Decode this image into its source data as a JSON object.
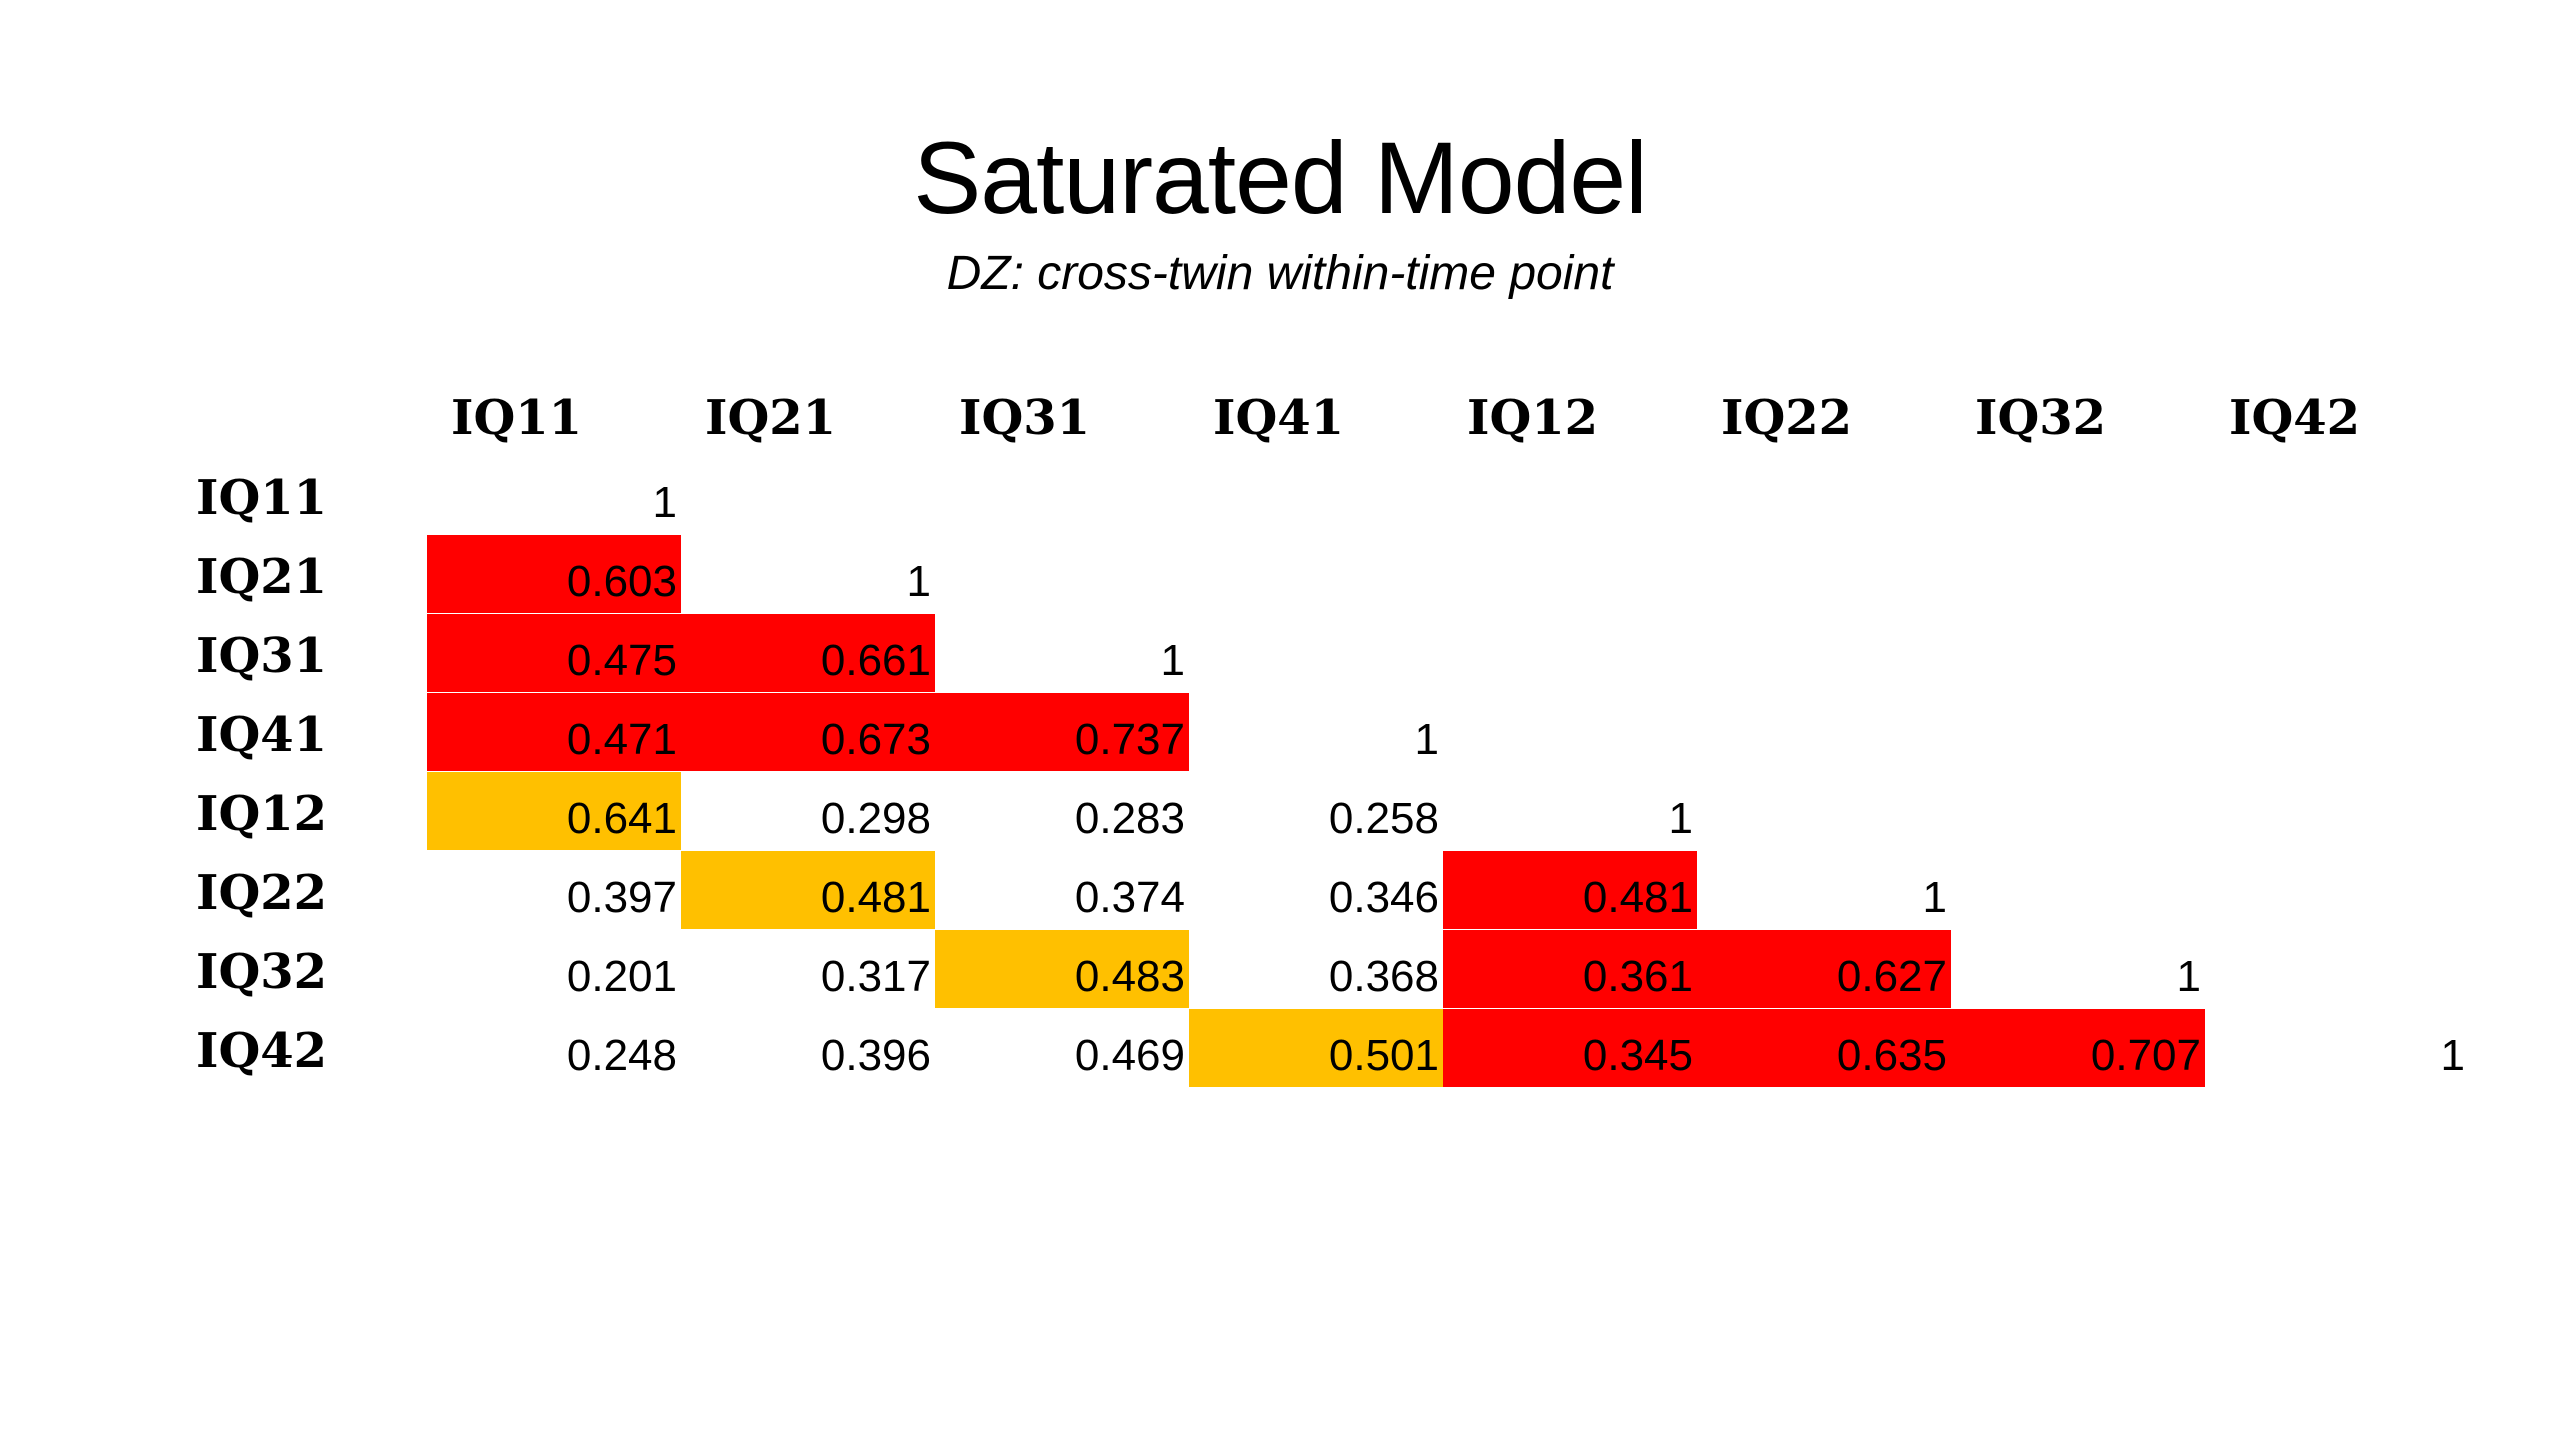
{
  "slide": {
    "title": "Saturated Model",
    "subtitle": "DZ: cross-twin within-time point"
  },
  "colors": {
    "within_twin_highlight": "#ff0000",
    "cross_twin_same_time_highlight": "#ffc000",
    "background": "#ffffff"
  },
  "matrix": {
    "columns": [
      "IQ11",
      "IQ21",
      "IQ31",
      "IQ41",
      "IQ12",
      "IQ22",
      "IQ32",
      "IQ42"
    ],
    "rows": [
      {
        "label": "IQ11",
        "values": [
          "1"
        ]
      },
      {
        "label": "IQ21",
        "values": [
          "0.603",
          "1"
        ]
      },
      {
        "label": "IQ31",
        "values": [
          "0.475",
          "0.661",
          "1"
        ]
      },
      {
        "label": "IQ41",
        "values": [
          "0.471",
          "0.673",
          "0.737",
          "1"
        ]
      },
      {
        "label": "IQ12",
        "values": [
          "0.641",
          "0.298",
          "0.283",
          "0.258",
          "1"
        ]
      },
      {
        "label": "IQ22",
        "values": [
          "0.397",
          "0.481",
          "0.374",
          "0.346",
          "0.481",
          "1"
        ]
      },
      {
        "label": "IQ32",
        "values": [
          "0.201",
          "0.317",
          "0.483",
          "0.368",
          "0.361",
          "0.627",
          "1"
        ]
      },
      {
        "label": "IQ42",
        "values": [
          "0.248",
          "0.396",
          "0.469",
          "0.501",
          "0.345",
          "0.635",
          "0.707",
          "1"
        ]
      }
    ],
    "highlights": {
      "red": [
        [
          1,
          0
        ],
        [
          2,
          0
        ],
        [
          2,
          1
        ],
        [
          3,
          0
        ],
        [
          3,
          1
        ],
        [
          3,
          2
        ],
        [
          5,
          4
        ],
        [
          6,
          4
        ],
        [
          6,
          5
        ],
        [
          7,
          4
        ],
        [
          7,
          5
        ],
        [
          7,
          6
        ]
      ],
      "amber": [
        [
          4,
          0
        ],
        [
          5,
          1
        ],
        [
          6,
          2
        ],
        [
          7,
          3
        ]
      ]
    }
  }
}
